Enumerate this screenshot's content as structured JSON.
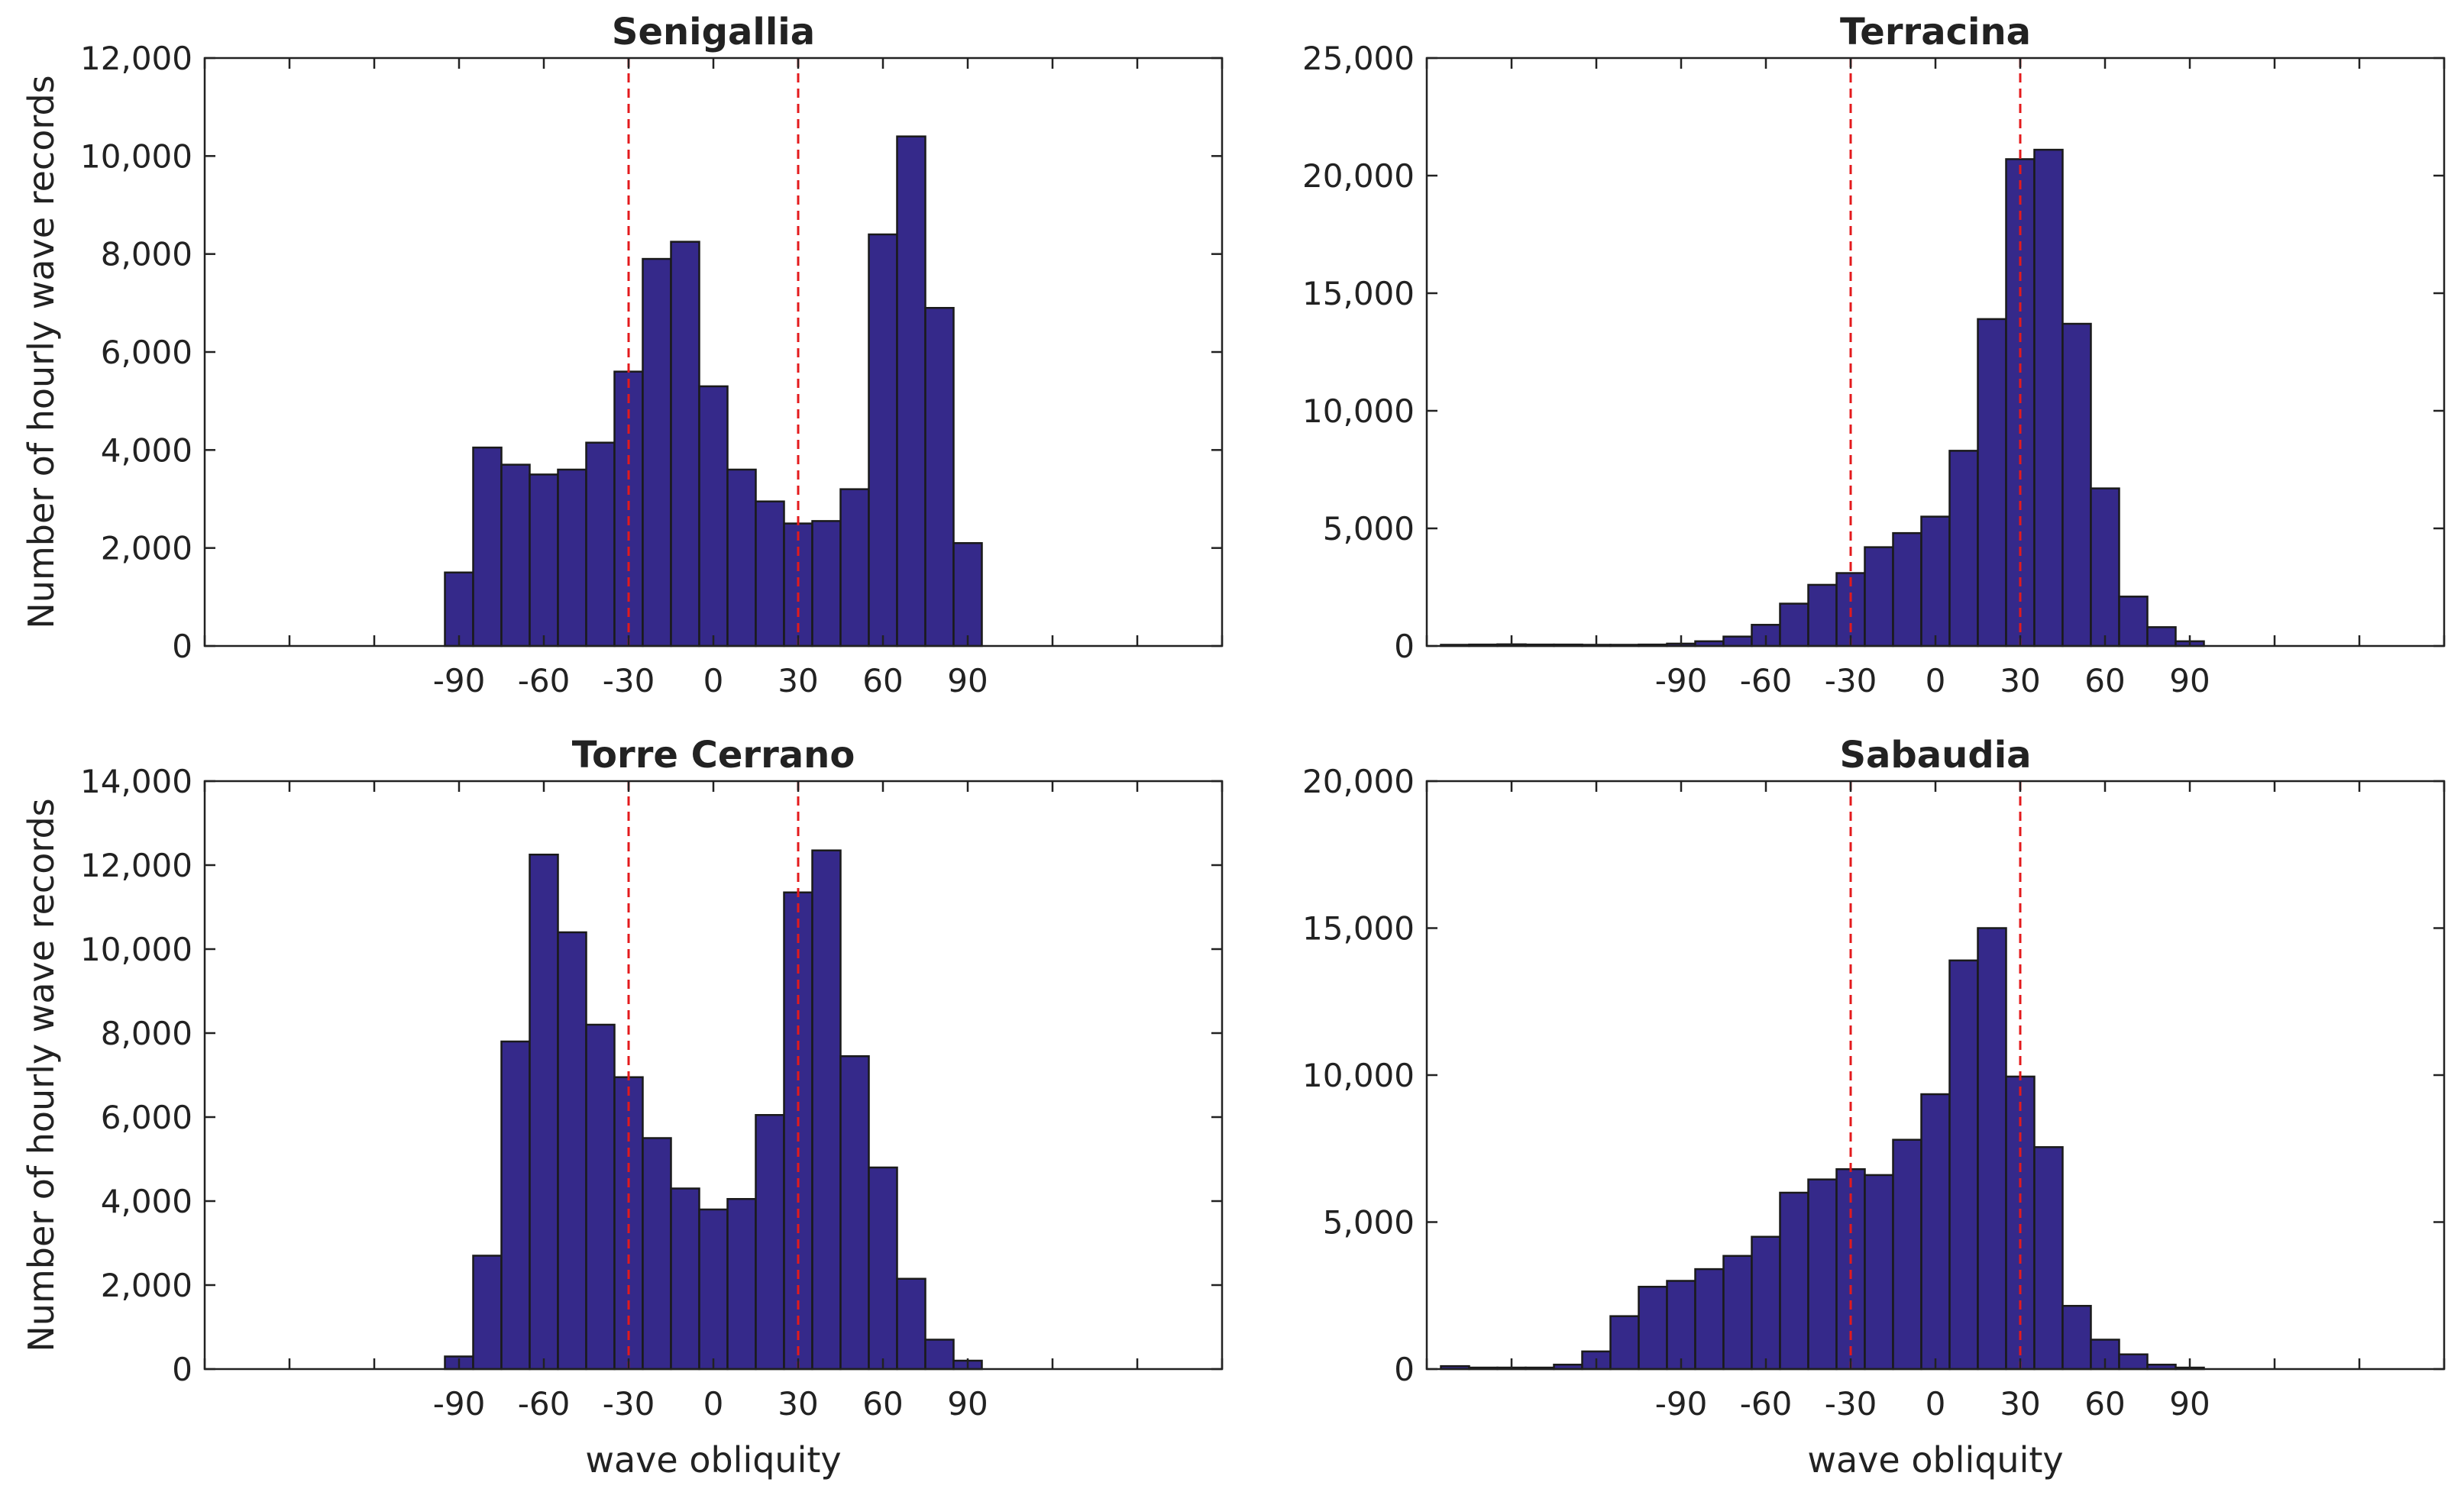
{
  "figure": {
    "bar_color": "#35298a",
    "ref_line_color": "#e31a1c"
  },
  "chart_data": [
    {
      "type": "bar",
      "panel": "top-left",
      "title": "Senigallia",
      "xlabel": "",
      "ylabel": "Number of hourly wave records",
      "bin_width": 10,
      "xlim": [
        -180,
        180
      ],
      "ylim": [
        0,
        12000
      ],
      "xticks": [
        -90,
        -60,
        -30,
        0,
        30,
        60,
        90
      ],
      "yticks": [
        0,
        2000,
        4000,
        6000,
        8000,
        10000,
        12000
      ],
      "ytick_labels": [
        "0",
        "2,000",
        "4,000",
        "6,000",
        "8,000",
        "10,000",
        "12,000"
      ],
      "reference_lines": [
        -30,
        30
      ],
      "bin_starts": [
        -95,
        -85,
        -75,
        -65,
        -55,
        -45,
        -35,
        -25,
        -15,
        -5,
        5,
        15,
        25,
        35,
        45,
        55,
        65,
        75,
        85
      ],
      "values": [
        1500,
        4050,
        3700,
        3500,
        3600,
        4150,
        5600,
        7900,
        8250,
        5300,
        3600,
        2950,
        2500,
        2550,
        3200,
        8400,
        10400,
        6900,
        2100
      ]
    },
    {
      "type": "bar",
      "panel": "top-right",
      "title": "Terracina",
      "xlabel": "",
      "ylabel": "",
      "bin_width": 10,
      "xlim": [
        -180,
        180
      ],
      "ylim": [
        0,
        25000
      ],
      "xticks": [
        -90,
        -60,
        -30,
        0,
        30,
        60,
        90
      ],
      "yticks": [
        0,
        5000,
        10000,
        15000,
        20000,
        25000
      ],
      "ytick_labels": [
        "0",
        "5,000",
        "10,000",
        "15,000",
        "20,000",
        "25,000"
      ],
      "reference_lines": [
        -30,
        30
      ],
      "bin_starts": [
        -175,
        -165,
        -155,
        -145,
        -135,
        -125,
        -115,
        -105,
        -95,
        -85,
        -75,
        -65,
        -55,
        -45,
        -35,
        -25,
        -15,
        -5,
        5,
        15,
        25,
        35,
        45,
        55,
        65,
        75,
        85
      ],
      "values": [
        50,
        60,
        70,
        60,
        60,
        50,
        50,
        60,
        100,
        200,
        400,
        900,
        1800,
        2600,
        3100,
        4200,
        4800,
        5500,
        8300,
        13900,
        20700,
        21100,
        13700,
        6700,
        2100,
        800,
        200
      ]
    },
    {
      "type": "bar",
      "panel": "bottom-left",
      "title": "Torre Cerrano",
      "xlabel": "wave obliquity",
      "ylabel": "Number of hourly wave records",
      "bin_width": 10,
      "xlim": [
        -180,
        180
      ],
      "ylim": [
        0,
        14000
      ],
      "xticks": [
        -90,
        -60,
        -30,
        0,
        30,
        60,
        90
      ],
      "yticks": [
        0,
        2000,
        4000,
        6000,
        8000,
        10000,
        12000,
        14000
      ],
      "ytick_labels": [
        "0",
        "2,000",
        "4,000",
        "6,000",
        "8,000",
        "10,000",
        "12,000",
        "14,000"
      ],
      "reference_lines": [
        -30,
        30
      ],
      "bin_starts": [
        -95,
        -85,
        -75,
        -65,
        -55,
        -45,
        -35,
        -25,
        -15,
        -5,
        5,
        15,
        25,
        35,
        45,
        55,
        65,
        75,
        85
      ],
      "values": [
        300,
        2700,
        7800,
        12250,
        10400,
        8200,
        6950,
        5500,
        4300,
        3800,
        4050,
        6050,
        11350,
        12350,
        7450,
        4800,
        2150,
        700,
        200
      ]
    },
    {
      "type": "bar",
      "panel": "bottom-right",
      "title": "Sabaudia",
      "xlabel": "wave obliquity",
      "ylabel": "",
      "bin_width": 10,
      "xlim": [
        -180,
        180
      ],
      "ylim": [
        0,
        20000
      ],
      "xticks": [
        -90,
        -60,
        -30,
        0,
        30,
        60,
        90
      ],
      "yticks": [
        0,
        5000,
        10000,
        15000,
        20000
      ],
      "ytick_labels": [
        "0",
        "5,000",
        "10,000",
        "15,000",
        "20,000"
      ],
      "reference_lines": [
        -30,
        30
      ],
      "bin_starts": [
        -175,
        -165,
        -155,
        -145,
        -135,
        -125,
        -115,
        -105,
        -95,
        -85,
        -75,
        -65,
        -55,
        -45,
        -35,
        -25,
        -15,
        -5,
        5,
        15,
        25,
        35,
        45,
        55,
        65,
        75,
        85
      ],
      "values": [
        100,
        50,
        50,
        50,
        150,
        600,
        1800,
        2800,
        3000,
        3400,
        3850,
        4500,
        6000,
        6450,
        6800,
        6600,
        7800,
        9350,
        13900,
        15000,
        9950,
        7550,
        2150,
        1000,
        500,
        150,
        50
      ]
    }
  ]
}
